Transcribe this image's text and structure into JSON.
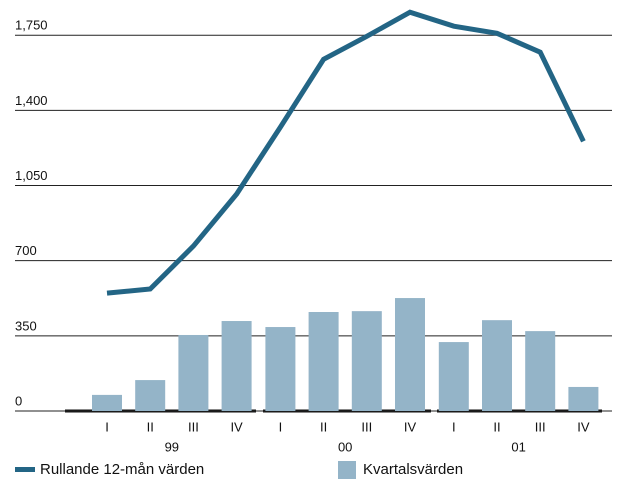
{
  "chart_data": {
    "type": "bar-line",
    "categories": [
      "I",
      "II",
      "III",
      "IV",
      "I",
      "II",
      "III",
      "IV",
      "I",
      "II",
      "III",
      "IV"
    ],
    "groups": [
      "99",
      "00",
      "01"
    ],
    "series": [
      {
        "name": "Kvartalsvärden",
        "type": "bar",
        "color": "#94b4c8",
        "values": [
          75,
          144,
          354,
          419,
          391,
          461,
          465,
          526,
          321,
          423,
          372,
          112
        ]
      },
      {
        "name": "Rullande 12-mån värden",
        "type": "line",
        "color": "#236585",
        "values": [
          549,
          568,
          768,
          1010,
          1322,
          1638,
          1745,
          1857,
          1792,
          1759,
          1671,
          1256
        ]
      }
    ],
    "ylim": [
      0,
      1900
    ],
    "yticks": [
      0,
      350,
      700,
      {
        "value": 1050,
        "label": "1,050"
      },
      {
        "value": 1400,
        "label": "1,400"
      },
      {
        "value": 1750,
        "label": "1,750"
      }
    ],
    "grid": true
  }
}
